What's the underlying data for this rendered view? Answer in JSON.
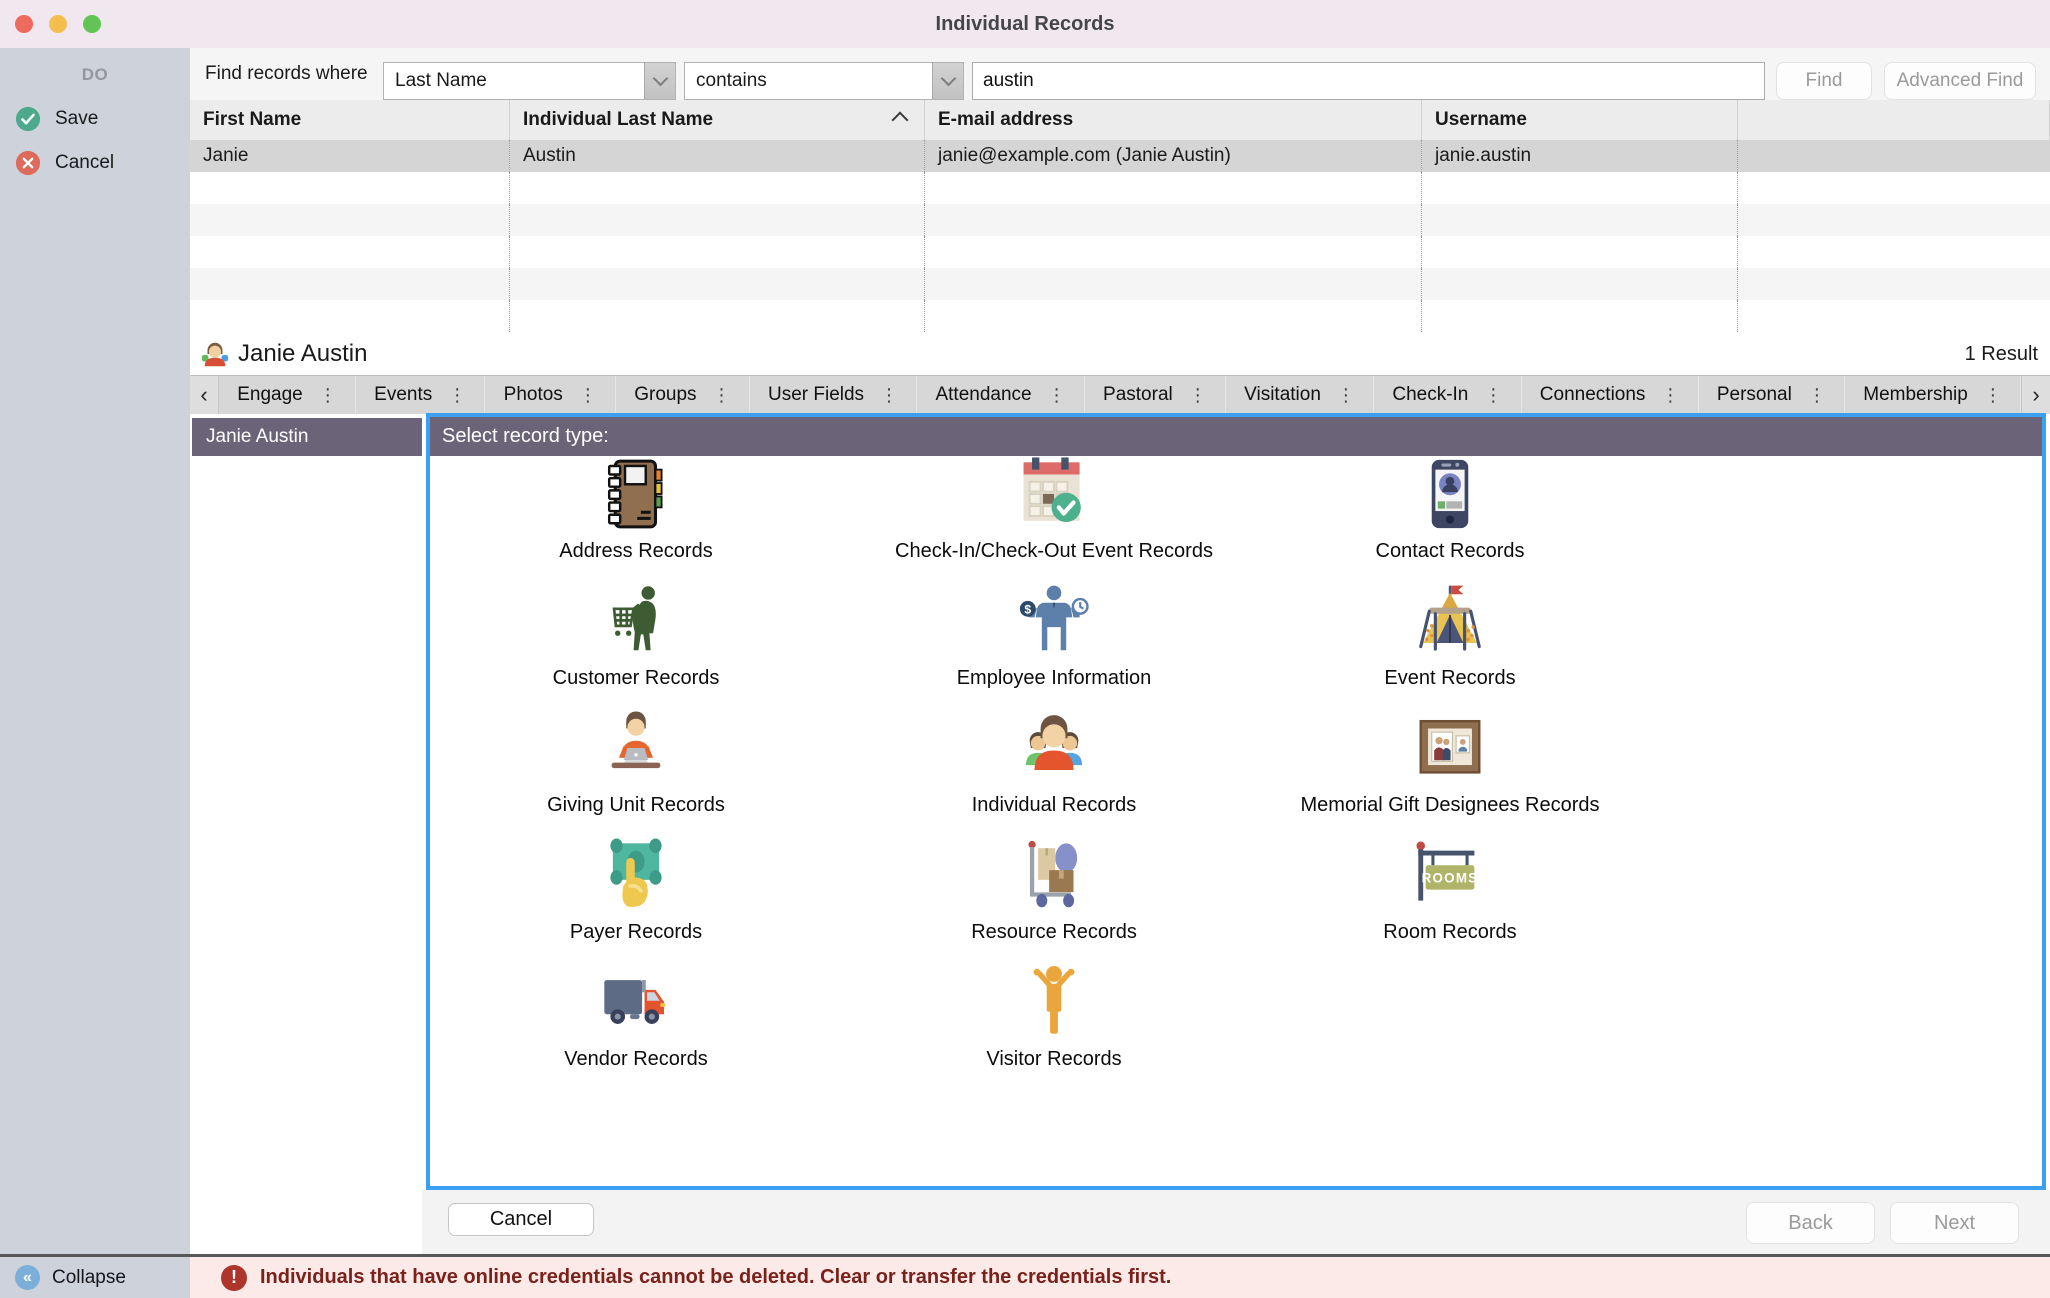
{
  "window": {
    "title": "Individual Records"
  },
  "sidebar": {
    "heading": "DO",
    "items": [
      {
        "label": "Save",
        "icon": "save-check-icon"
      },
      {
        "label": "Cancel",
        "icon": "cancel-x-icon"
      }
    ],
    "collapse_label": "Collapse",
    "collapse_icon": "collapse-chevrons-icon",
    "collapse_glyph": "«"
  },
  "find_bar": {
    "label": "Find records where",
    "field_select": "Last Name",
    "operator_select": "contains",
    "search_value": "austin",
    "find_button": "Find",
    "advanced_find_button": "Advanced Find"
  },
  "results_table": {
    "columns": [
      "First Name",
      "Individual Last Name",
      "E-mail address",
      "Username",
      ""
    ],
    "sorted_column_index": 1,
    "rows": [
      [
        "Janie",
        "Austin",
        "janie@example.com (Janie Austin)",
        "janie.austin",
        ""
      ]
    ],
    "empty_row_count": 5
  },
  "record_header": {
    "avatar_icon": "person-avatar-icon",
    "name": "Janie Austin",
    "result_count": "1 Result"
  },
  "tabs": {
    "left_scroll": "‹",
    "right_scroll": "›",
    "overflow_glyph": "⋮",
    "items": [
      "Engage",
      "Events",
      "Photos",
      "Groups",
      "User Fields",
      "Attendance",
      "Pastoral",
      "Visitation",
      "Check-In",
      "Connections",
      "Personal",
      "Membership"
    ]
  },
  "left_panel": {
    "title": "Janie Austin"
  },
  "record_type_panel": {
    "title": "Select record type:",
    "types": [
      {
        "label": "Address Records",
        "icon": "address-book-icon"
      },
      {
        "label": "Check-In/Check-Out Event Records",
        "icon": "checkin-calendar-icon"
      },
      {
        "label": "Contact Records",
        "icon": "contact-phone-icon"
      },
      {
        "label": "Customer Records",
        "icon": "customer-cart-icon"
      },
      {
        "label": "Employee Information",
        "icon": "employee-icon"
      },
      {
        "label": "Event Records",
        "icon": "event-tent-icon"
      },
      {
        "label": "Giving Unit Records",
        "icon": "giving-laptop-icon"
      },
      {
        "label": "Individual Records",
        "icon": "individual-group-icon"
      },
      {
        "label": "Memorial Gift Designees Records",
        "icon": "memorial-frame-icon"
      },
      {
        "label": "Payer Records",
        "icon": "payer-hand-icon"
      },
      {
        "label": "Resource Records",
        "icon": "resource-handtruck-icon"
      },
      {
        "label": "Room Records",
        "icon": "room-sign-icon"
      },
      {
        "label": "Vendor Records",
        "icon": "vendor-truck-icon"
      },
      {
        "label": "Visitor Records",
        "icon": "visitor-icon"
      }
    ]
  },
  "footer": {
    "cancel_button": "Cancel",
    "back_button": "Back",
    "next_button": "Next"
  },
  "status_bar": {
    "warning_icon": "warning-exclamation-icon",
    "warning_glyph": "!",
    "message": "Individuals that have online credentials cannot be deleted. Clear or transfer the credentials first."
  },
  "colors": {
    "accent_blue": "#3d9ff2",
    "header_purple": "#6b6478",
    "titlebar": "#f0e8ee",
    "sidebar_bg": "#cdd2db",
    "save_green": "#4da98c",
    "cancel_red": "#dd6a5a",
    "warning_bg": "#fceae8",
    "warning_text": "#7b211b",
    "selected_row": "#d5d5d5"
  }
}
